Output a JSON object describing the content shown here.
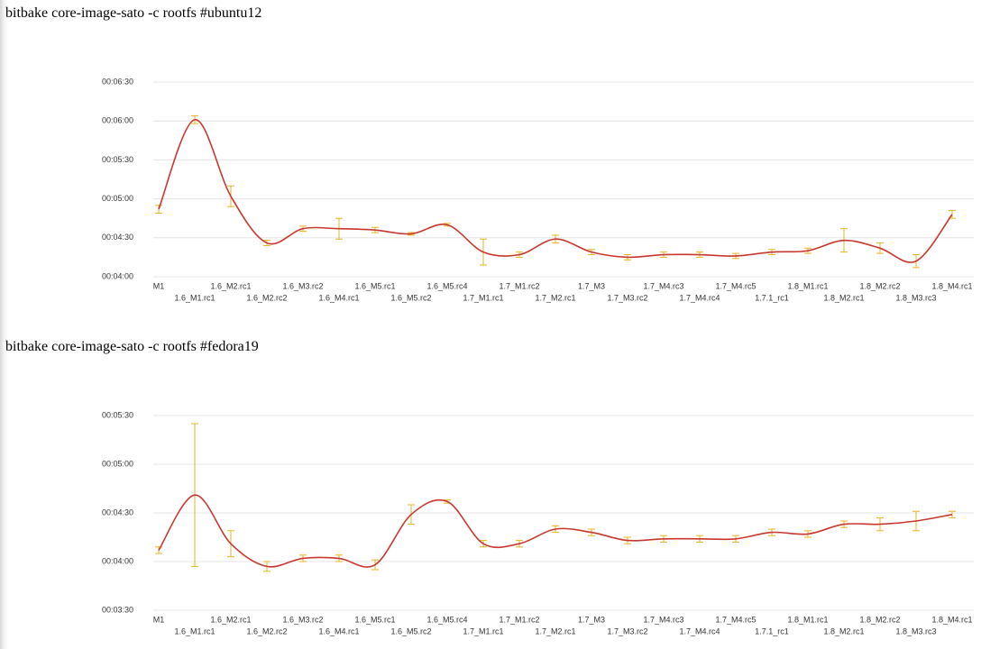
{
  "chart_data": [
    {
      "type": "line",
      "title": "bitbake core-image-sato -c rootfs #ubuntu12",
      "categories": [
        "M1",
        "1.6_M1.rc1",
        "1.6_M2.rc1",
        "1.6_M2.rc2",
        "1.6_M3.rc2",
        "1.6_M4.rc1",
        "1.6_M5.rc1",
        "1.6_M5.rc2",
        "1.6_M5.rc4",
        "1.7_M1.rc1",
        "1.7_M1.rc2",
        "1.7_M2.rc1",
        "1.7_M3",
        "1.7_M3.rc2",
        "1.7_M4.rc3",
        "1.7_M4.rc4",
        "1.7_M4.rc5",
        "1.7.1_rc1",
        "1.8_M1.rc1",
        "1.8_M2.rc1",
        "1.8_M2.rc2",
        "1.8_M3.rc3",
        "1.8_M4.rc1"
      ],
      "values": [
        292,
        361,
        302,
        266,
        277,
        277,
        276,
        273,
        280,
        259,
        257,
        269,
        259,
        255,
        257,
        257,
        256,
        259,
        260,
        268,
        262,
        252,
        288
      ],
      "errors": [
        3,
        3,
        8,
        2,
        2,
        8,
        2,
        1,
        1,
        10,
        2,
        3,
        2,
        2,
        2,
        2,
        2,
        2,
        2,
        9,
        4,
        5,
        3
      ],
      "color": "#c8372d",
      "error_color": "#e6b422",
      "ylim": [
        240,
        390
      ],
      "yticks": [
        {
          "value": 240,
          "label": "00:04:00"
        },
        {
          "value": 270,
          "label": "00:04:30"
        },
        {
          "value": 300,
          "label": "00:05:00"
        },
        {
          "value": 330,
          "label": "00:05:30"
        },
        {
          "value": 360,
          "label": "00:06:00"
        },
        {
          "value": 390,
          "label": "00:06:30"
        }
      ],
      "grid": true
    },
    {
      "type": "line",
      "title": "bitbake core-image-sato -c rootfs #fedora19",
      "categories": [
        "M1",
        "1.6_M1.rc1",
        "1.6_M2.rc1",
        "1.6_M2.rc2",
        "1.6_M3.rc2",
        "1.6_M4.rc1",
        "1.6_M5.rc1",
        "1.6_M5.rc2",
        "1.6_M5.rc4",
        "1.7_M1.rc1",
        "1.7_M1.rc2",
        "1.7_M2.rc1",
        "1.7_M3",
        "1.7_M3.rc2",
        "1.7_M4.rc3",
        "1.7_M4.rc4",
        "1.7_M4.rc5",
        "1.7.1_rc1",
        "1.8_M1.rc1",
        "1.8_M2.rc1",
        "1.8_M2.rc2",
        "1.8_M3.rc3",
        "1.8_M4.rc1"
      ],
      "values": [
        247,
        281,
        251,
        237,
        242,
        242,
        238,
        269,
        277,
        251,
        251,
        260,
        258,
        253,
        254,
        254,
        254,
        258,
        257,
        263,
        263,
        265,
        269
      ],
      "errors": [
        2,
        44,
        8,
        3,
        2,
        2,
        3,
        6,
        1,
        2,
        2,
        2,
        2,
        2,
        2,
        2,
        2,
        2,
        2,
        2,
        4,
        6,
        2
      ],
      "color": "#c8372d",
      "error_color": "#e6b422",
      "ylim": [
        210,
        330
      ],
      "yticks": [
        {
          "value": 210,
          "label": "00:03:30"
        },
        {
          "value": 240,
          "label": "00:04:00"
        },
        {
          "value": 270,
          "label": "00:04:30"
        },
        {
          "value": 300,
          "label": "00:05:00"
        },
        {
          "value": 330,
          "label": "00:05:30"
        }
      ],
      "grid": true
    }
  ]
}
